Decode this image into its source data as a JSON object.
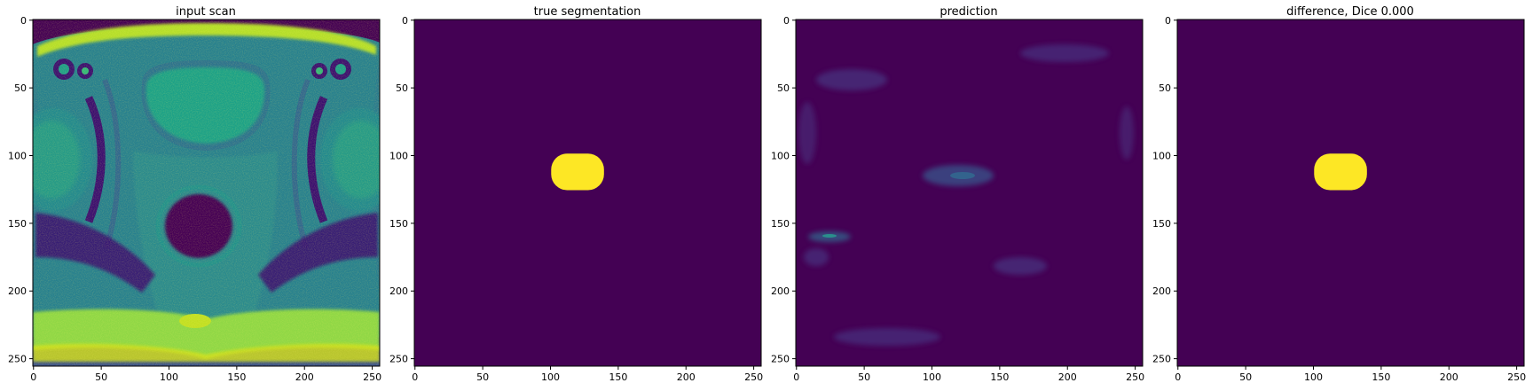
{
  "figure": {
    "colormap": {
      "low": "#440154",
      "mid": "#21918c",
      "high": "#fde725"
    },
    "axis": {
      "xlim": [
        0,
        255
      ],
      "ylim": [
        255,
        0
      ],
      "xticks": [
        "0",
        "50",
        "100",
        "150",
        "200",
        "250"
      ],
      "yticks": [
        "0",
        "50",
        "100",
        "150",
        "200",
        "250"
      ]
    },
    "panels": [
      {
        "title": "input scan",
        "content": "mri-scan"
      },
      {
        "title": "true segmentation",
        "content": "mask"
      },
      {
        "title": "prediction",
        "content": "faint-noise"
      },
      {
        "title": "difference, Dice 0.000",
        "content": "mask"
      }
    ],
    "mask_region": {
      "x": [
        101,
        140
      ],
      "y": [
        99,
        126
      ]
    }
  }
}
